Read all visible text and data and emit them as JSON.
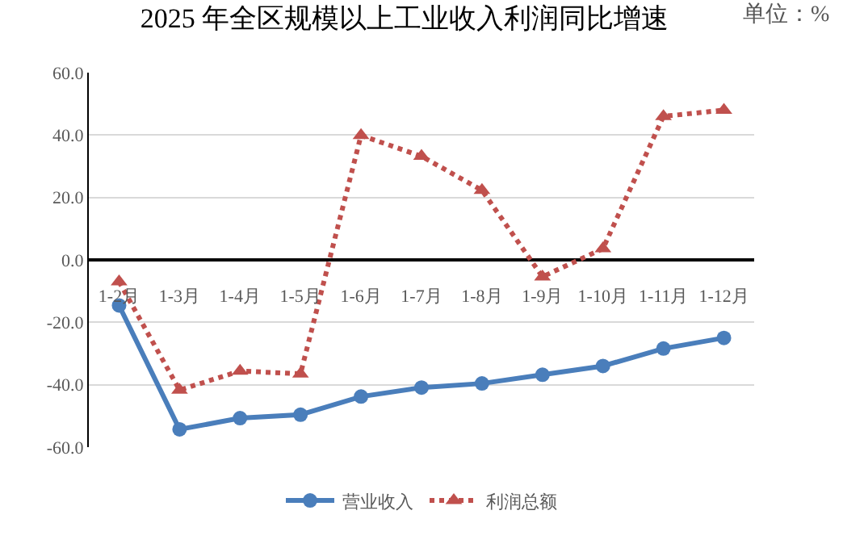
{
  "chart_data": {
    "type": "line",
    "title": "2025 年全区规模以上工业收入利润同比增速",
    "annotations": [
      "单位：%"
    ],
    "categories": [
      "1-2月",
      "1-3月",
      "1-4月",
      "1-5月",
      "1-6月",
      "1-7月",
      "1-8月",
      "1-9月",
      "1-10月",
      "1-11月",
      "1-12月"
    ],
    "series": [
      {
        "name": "营业收入",
        "color": "#4a7ebb",
        "marker": "circle",
        "line_style": "solid",
        "values": [
          -14.6,
          -54.3,
          -50.7,
          -49.6,
          -43.8,
          -40.9,
          -39.6,
          -36.8,
          -34.0,
          -28.4,
          -25.0
        ]
      },
      {
        "name": "利润总额",
        "color": "#c0504d",
        "marker": "triangle",
        "line_style": "dotted",
        "values": [
          -7.0,
          -41.7,
          -35.6,
          -36.5,
          39.9,
          33.2,
          22.3,
          -5.4,
          3.6,
          46.0,
          48.0
        ]
      }
    ],
    "ylim": [
      -60,
      60
    ],
    "yticks": [
      {
        "value": -60,
        "label": "-60.0"
      },
      {
        "value": -40,
        "label": "-40.0"
      },
      {
        "value": -20,
        "label": "-20.0"
      },
      {
        "value": 0,
        "label": "0.0"
      },
      {
        "value": 20,
        "label": "20.0"
      },
      {
        "value": 40,
        "label": "40.0"
      },
      {
        "value": 60,
        "label": "60.0"
      }
    ],
    "grid": "y",
    "legend": "bottom"
  }
}
